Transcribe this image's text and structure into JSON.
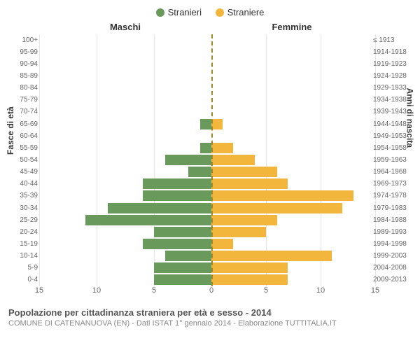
{
  "legend": {
    "male": {
      "label": "Stranieri",
      "color": "#6a9a5b"
    },
    "female": {
      "label": "Straniere",
      "color": "#f3b63c"
    }
  },
  "titles": {
    "male_col": "Maschi",
    "female_col": "Femmine",
    "left_axis": "Fasce di età",
    "right_axis": "Anni di nascita"
  },
  "chart": {
    "type": "population-pyramid",
    "xmax": 15,
    "xtick_step": 5,
    "xticks_left": [
      15,
      10,
      5,
      0
    ],
    "xticks_right": [
      5,
      10,
      15
    ],
    "background_color": "#ffffff",
    "grid_color": "#e6e6e6",
    "center_line_color": "#9a8a2a",
    "bar_colors": {
      "male": "#6a9a5b",
      "female": "#f3b63c"
    },
    "rows": [
      {
        "age": "100+",
        "birth": "≤ 1913",
        "m": 0,
        "f": 0
      },
      {
        "age": "95-99",
        "birth": "1914-1918",
        "m": 0,
        "f": 0
      },
      {
        "age": "90-94",
        "birth": "1919-1923",
        "m": 0,
        "f": 0
      },
      {
        "age": "85-89",
        "birth": "1924-1928",
        "m": 0,
        "f": 0
      },
      {
        "age": "80-84",
        "birth": "1929-1933",
        "m": 0,
        "f": 0
      },
      {
        "age": "75-79",
        "birth": "1934-1938",
        "m": 0,
        "f": 0
      },
      {
        "age": "70-74",
        "birth": "1939-1943",
        "m": 0,
        "f": 0
      },
      {
        "age": "65-69",
        "birth": "1944-1948",
        "m": 1,
        "f": 1
      },
      {
        "age": "60-64",
        "birth": "1949-1953",
        "m": 0,
        "f": 0
      },
      {
        "age": "55-59",
        "birth": "1954-1958",
        "m": 1,
        "f": 2
      },
      {
        "age": "50-54",
        "birth": "1959-1963",
        "m": 4,
        "f": 4
      },
      {
        "age": "45-49",
        "birth": "1964-1968",
        "m": 2,
        "f": 6
      },
      {
        "age": "40-44",
        "birth": "1969-1973",
        "m": 6,
        "f": 7
      },
      {
        "age": "35-39",
        "birth": "1974-1978",
        "m": 6,
        "f": 13
      },
      {
        "age": "30-34",
        "birth": "1979-1983",
        "m": 9,
        "f": 12
      },
      {
        "age": "25-29",
        "birth": "1984-1988",
        "m": 11,
        "f": 6
      },
      {
        "age": "20-24",
        "birth": "1989-1993",
        "m": 5,
        "f": 5
      },
      {
        "age": "15-19",
        "birth": "1994-1998",
        "m": 6,
        "f": 2
      },
      {
        "age": "10-14",
        "birth": "1999-2003",
        "m": 4,
        "f": 11
      },
      {
        "age": "5-9",
        "birth": "2004-2008",
        "m": 5,
        "f": 7
      },
      {
        "age": "0-4",
        "birth": "2009-2013",
        "m": 5,
        "f": 7
      }
    ]
  },
  "footer": {
    "line1": "Popolazione per cittadinanza straniera per età e sesso - 2014",
    "line2": "COMUNE DI CATENANUOVA (EN) - Dati ISTAT 1° gennaio 2014 - Elaborazione TUTTITALIA.IT"
  }
}
